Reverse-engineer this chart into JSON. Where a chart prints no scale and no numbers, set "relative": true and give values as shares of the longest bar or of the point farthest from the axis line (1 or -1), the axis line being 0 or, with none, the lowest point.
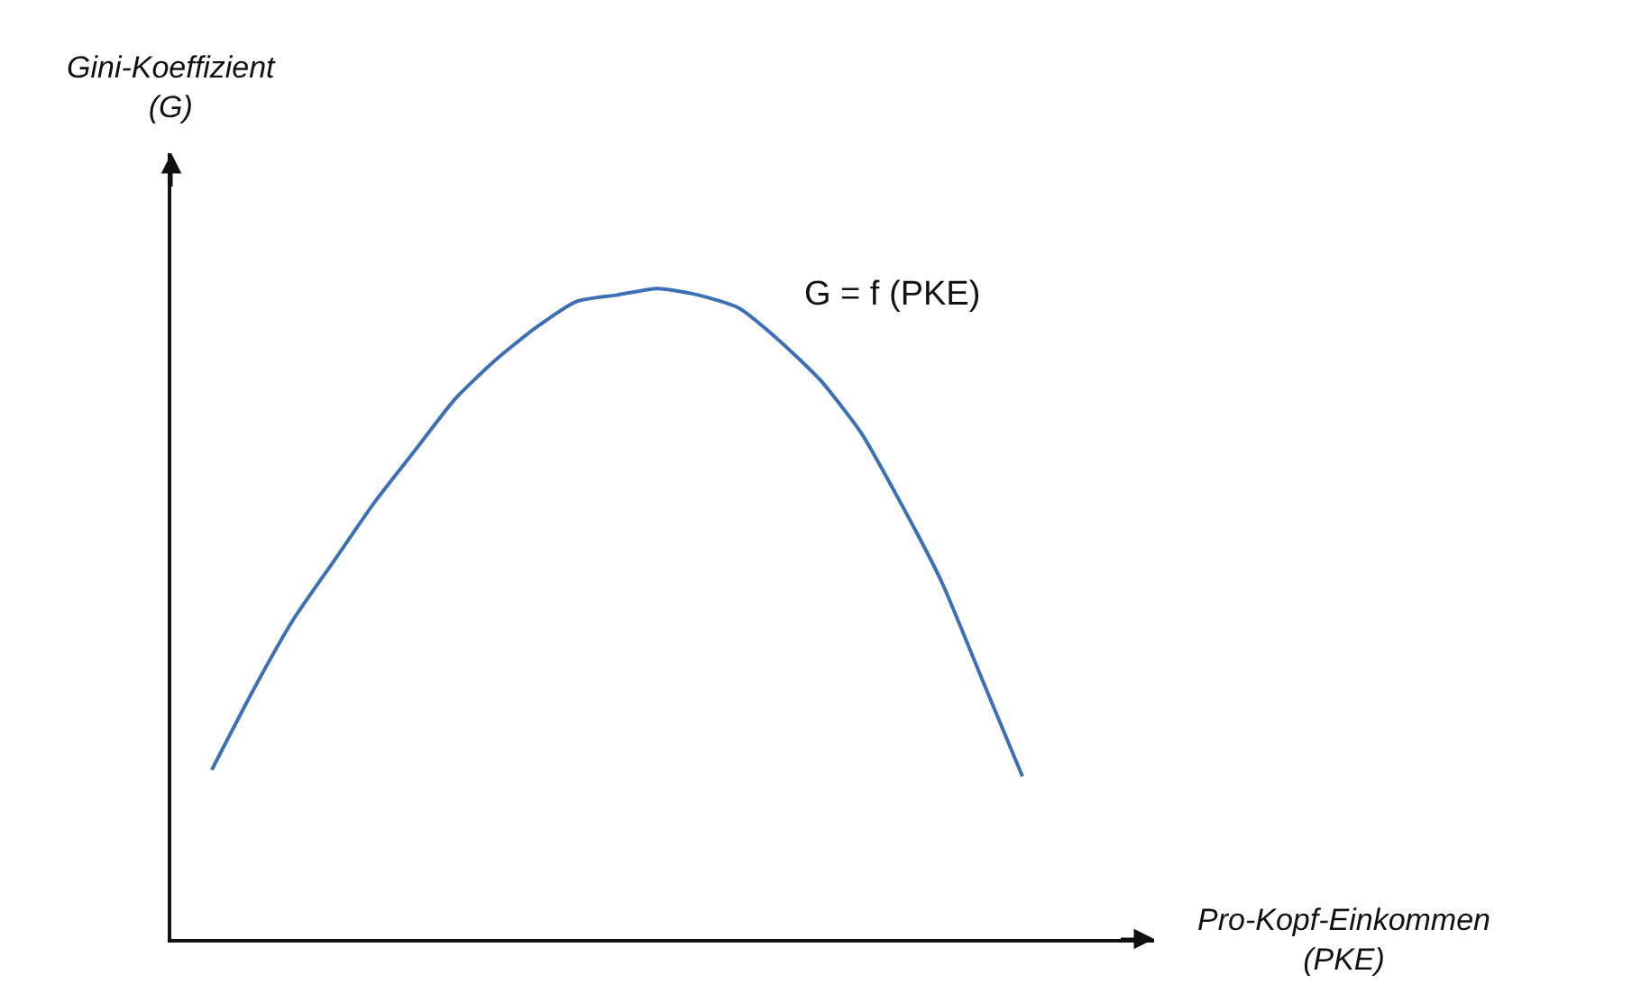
{
  "chart_data": {
    "type": "line",
    "relative": true,
    "categories": [
      null,
      null,
      null,
      null,
      null,
      null,
      null,
      null,
      null,
      null,
      null,
      null,
      null,
      null,
      null,
      null,
      null,
      null,
      null,
      null,
      null
    ],
    "values": [
      0.26,
      0.38,
      0.49,
      0.58,
      0.67,
      0.75,
      0.83,
      0.89,
      0.94,
      0.98,
      0.99,
      1,
      0.99,
      0.97,
      0.92,
      0.86,
      0.78,
      0.67,
      0.55,
      0.4,
      0.25
    ],
    "color": "#3d6fb6",
    "annotations": [
      "Gini-Koeffizient\n(G)",
      "Pro-Kopf-Einkommen\n(PKE)",
      "G = f (PKE)"
    ],
    "legend": false,
    "marker": "none",
    "line_style": "solid"
  }
}
